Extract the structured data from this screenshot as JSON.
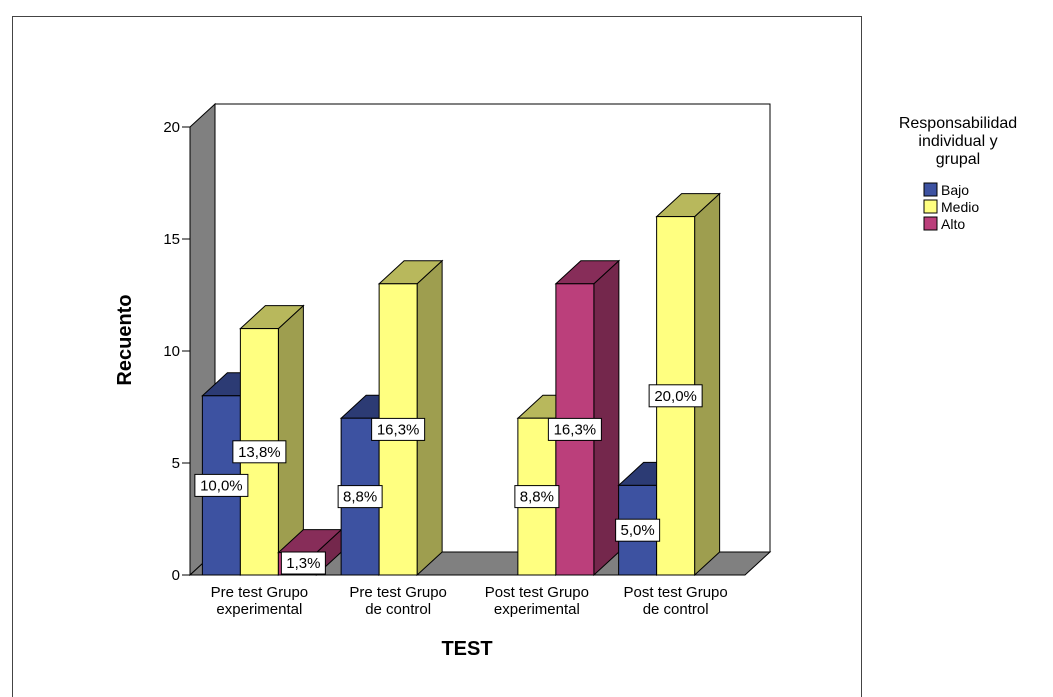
{
  "chart_data": {
    "type": "bar",
    "xlabel": "TEST",
    "ylabel": "Recuento",
    "ylim": [
      0,
      20
    ],
    "yticks": [
      0,
      5,
      10,
      15,
      20
    ],
    "categories": [
      [
        "Pre test Grupo",
        "experimental"
      ],
      [
        "Pre test Grupo",
        "de control"
      ],
      [
        "Post test Grupo",
        "experimental"
      ],
      [
        "Post test Grupo",
        "de control"
      ]
    ],
    "series": [
      {
        "name": "Bajo",
        "color": "#3d52a1",
        "values": [
          8,
          7,
          0,
          4
        ],
        "labels": [
          "10,0%",
          "8,8%",
          "",
          "5,0%"
        ]
      },
      {
        "name": "Medio",
        "color": "#ffff80",
        "values": [
          11,
          13,
          7,
          16
        ],
        "labels": [
          "13,8%",
          "16,3%",
          "8,8%",
          "20,0%"
        ]
      },
      {
        "name": "Alto",
        "color": "#bb3f7b",
        "values": [
          1,
          0,
          13,
          0
        ],
        "labels": [
          "1,3%",
          "",
          "16,3%",
          ""
        ]
      }
    ],
    "legend": {
      "title": [
        "Responsabilidad",
        "individual y",
        "grupal"
      ],
      "position": "right"
    },
    "grid": false,
    "style": "3d"
  }
}
